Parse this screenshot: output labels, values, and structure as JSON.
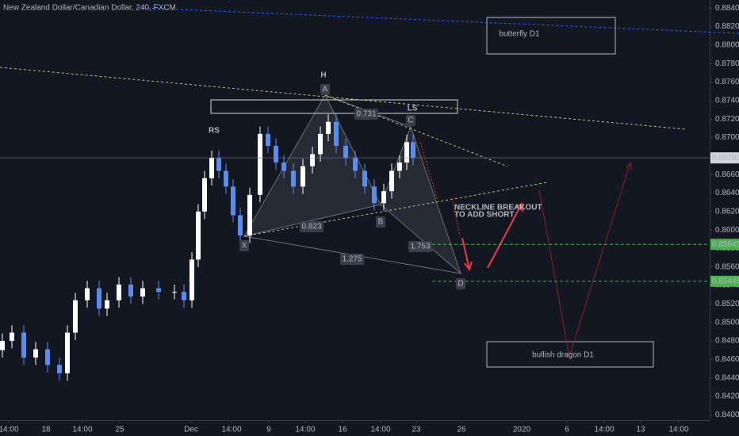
{
  "chart_data": {
    "type": "candlestick",
    "title": "New Zealand Dollar/Canadian Dollar, 240, FXCM",
    "up_color": "#ffffff",
    "down_color": "#5b8def",
    "xlim": [
      0,
      895
    ],
    "ylim": [
      0.83943,
      0.88488
    ],
    "xticks": [
      {
        "value": 11,
        "label": "14:00"
      },
      {
        "value": 58,
        "label": "18"
      },
      {
        "value": 104,
        "label": "14:00"
      },
      {
        "value": 151,
        "label": "25"
      },
      {
        "value": 241,
        "label": "Dec"
      },
      {
        "value": 292,
        "label": "14:00"
      },
      {
        "value": 339,
        "label": "9"
      },
      {
        "value": 385,
        "label": "14:00"
      },
      {
        "value": 432,
        "label": "16"
      },
      {
        "value": 480,
        "label": "14:00"
      },
      {
        "value": 525,
        "label": "23"
      },
      {
        "value": 582,
        "label": "26"
      },
      {
        "value": 658,
        "label": "2020"
      },
      {
        "value": 715,
        "label": "6"
      },
      {
        "value": 762,
        "label": "14:00"
      },
      {
        "value": 808,
        "label": "13"
      },
      {
        "value": 856,
        "label": "14:00"
      }
    ],
    "yticks": [
      {
        "value": 0.84,
        "label": "0.84000"
      },
      {
        "value": 0.842,
        "label": "0.84200"
      },
      {
        "value": 0.844,
        "label": "0.84400"
      },
      {
        "value": 0.846,
        "label": "0.84600"
      },
      {
        "value": 0.848,
        "label": "0.84800"
      },
      {
        "value": 0.85,
        "label": "0.85000"
      },
      {
        "value": 0.852,
        "label": "0.85200"
      },
      {
        "value": 0.854,
        "label": "0.85400"
      },
      {
        "value": 0.856,
        "label": "0.85600"
      },
      {
        "value": 0.858,
        "label": "0.85800"
      },
      {
        "value": 0.86,
        "label": "0.86000"
      },
      {
        "value": 0.862,
        "label": "0.86200"
      },
      {
        "value": 0.864,
        "label": "0.86400"
      },
      {
        "value": 0.866,
        "label": "0.86600"
      },
      {
        "value": 0.868,
        "label": "0.86800"
      },
      {
        "value": 0.87,
        "label": "0.87000"
      },
      {
        "value": 0.872,
        "label": "0.87200"
      },
      {
        "value": 0.874,
        "label": "0.87400"
      },
      {
        "value": 0.876,
        "label": "0.87600"
      },
      {
        "value": 0.878,
        "label": "0.87800"
      },
      {
        "value": 0.88,
        "label": "0.88000"
      },
      {
        "value": 0.882,
        "label": "0.88200"
      },
      {
        "value": 0.884,
        "label": "0.88400"
      }
    ],
    "candles": {
      "x": [
        3,
        15,
        30,
        45,
        60,
        75,
        85,
        95,
        110,
        125,
        135,
        150,
        165,
        180,
        200,
        220,
        232,
        242,
        250,
        258,
        267,
        276,
        285,
        294,
        303,
        315,
        328,
        338,
        348,
        358,
        370,
        382,
        394,
        404,
        414,
        424,
        436,
        448,
        460,
        472,
        484,
        494,
        504,
        513,
        521
      ],
      "open": [
        0.847,
        0.848,
        0.8489,
        0.8462,
        0.8471,
        0.8454,
        0.8445,
        0.8489,
        0.8524,
        0.8537,
        0.8515,
        0.8524,
        0.8541,
        0.8528,
        0.8537,
        0.8533,
        0.8533,
        0.8524,
        0.8568,
        0.862,
        0.8656,
        0.8678,
        0.8664,
        0.8647,
        0.8616,
        0.8594,
        0.8638,
        0.8704,
        0.8691,
        0.8673,
        0.8664,
        0.8647,
        0.8669,
        0.8682,
        0.8704,
        0.8717,
        0.8691,
        0.8678,
        0.8664,
        0.8647,
        0.8629,
        0.8642,
        0.8664,
        0.8673,
        0.8695
      ],
      "high": [
        0.8488,
        0.8497,
        0.8497,
        0.8479,
        0.8479,
        0.8462,
        0.8497,
        0.8532,
        0.8545,
        0.8545,
        0.8532,
        0.8549,
        0.8549,
        0.8545,
        0.8545,
        0.8541,
        0.8541,
        0.8576,
        0.8628,
        0.8664,
        0.8686,
        0.8686,
        0.8672,
        0.8655,
        0.8624,
        0.8646,
        0.8712,
        0.8712,
        0.8699,
        0.8681,
        0.8672,
        0.8677,
        0.869,
        0.8712,
        0.8725,
        0.8725,
        0.8699,
        0.8686,
        0.8672,
        0.8655,
        0.865,
        0.8672,
        0.8681,
        0.8703,
        0.8703
      ],
      "low": [
        0.8462,
        0.8472,
        0.8454,
        0.8454,
        0.8446,
        0.8437,
        0.8437,
        0.8481,
        0.8516,
        0.8507,
        0.8507,
        0.8516,
        0.852,
        0.852,
        0.8525,
        0.8525,
        0.8516,
        0.8516,
        0.856,
        0.8612,
        0.8648,
        0.8656,
        0.8639,
        0.8608,
        0.8586,
        0.8586,
        0.863,
        0.8683,
        0.8665,
        0.8656,
        0.8639,
        0.8639,
        0.8661,
        0.8674,
        0.8696,
        0.8683,
        0.867,
        0.8656,
        0.8639,
        0.8621,
        0.8621,
        0.8634,
        0.8656,
        0.8665,
        0.867
      ],
      "close": [
        0.848,
        0.8489,
        0.8462,
        0.8471,
        0.8454,
        0.8445,
        0.8489,
        0.8524,
        0.8537,
        0.8515,
        0.8524,
        0.8541,
        0.8528,
        0.8537,
        0.8533,
        0.8533,
        0.8524,
        0.8568,
        0.862,
        0.8656,
        0.8678,
        0.8664,
        0.8647,
        0.8616,
        0.8594,
        0.8638,
        0.8704,
        0.8691,
        0.8673,
        0.8664,
        0.8647,
        0.8669,
        0.8682,
        0.8704,
        0.8717,
        0.8691,
        0.8678,
        0.8664,
        0.8647,
        0.8629,
        0.8642,
        0.8664,
        0.8673,
        0.8695,
        0.8678
      ]
    },
    "price_lines": [
      {
        "value": 0.8678,
        "label": "0.86780",
        "color": "#787b86",
        "label_color": "#d1d4dc",
        "text_color": "#131722"
      },
      {
        "value": 0.85845,
        "label": "0.85845",
        "color": "#4caf50",
        "label_color": "#4caf50",
        "text_color": "#ffffff"
      },
      {
        "value": 0.85445,
        "label": "0.85445",
        "color": "#4caf50",
        "label_color": "#4caf50",
        "text_color": "#ffffff"
      }
    ],
    "annotations": [
      "H",
      "RS",
      "LS",
      "A",
      "X",
      "B",
      "C",
      "D",
      "0.731",
      "0.823",
      "1.275",
      "1.753",
      "NECKLINE BREAKOUT",
      "TO ADD SHORT",
      "butterfly D1",
      "bullish dragon D1"
    ]
  }
}
